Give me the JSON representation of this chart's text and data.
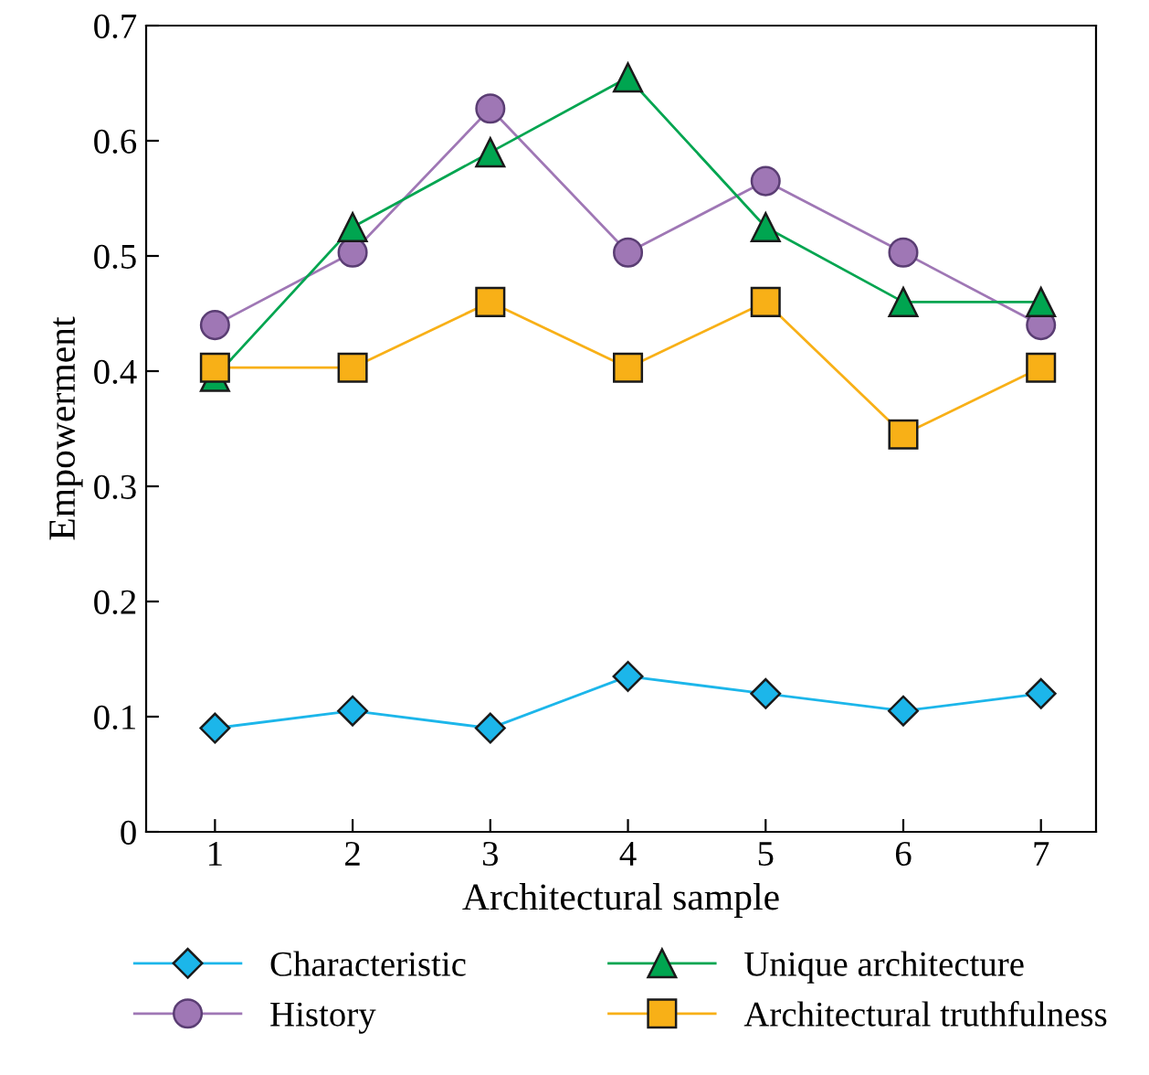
{
  "chart_data": {
    "type": "line",
    "xlabel": "Architectural sample",
    "ylabel": "Empowerment",
    "x": [
      1,
      2,
      3,
      4,
      5,
      6,
      7
    ],
    "xlim": [
      0.5,
      7.4
    ],
    "xticks": [
      1,
      2,
      3,
      4,
      5,
      6,
      7
    ],
    "ylim": [
      0,
      0.7
    ],
    "yticks": [
      0,
      0.1,
      0.2,
      0.3,
      0.4,
      0.5,
      0.6,
      0.7
    ],
    "grid": false,
    "legend": "bottom",
    "series": [
      {
        "name": "Characteristic",
        "color": "#1cb6ea",
        "marker": "diamond",
        "values": [
          0.09,
          0.105,
          0.09,
          0.135,
          0.12,
          0.105,
          0.12
        ]
      },
      {
        "name": "History",
        "color": "#9f77b5",
        "marker": "circle",
        "values": [
          0.44,
          0.503,
          0.628,
          0.503,
          0.565,
          0.503,
          0.44
        ]
      },
      {
        "name": "Unique architecture",
        "color": "#00a550",
        "marker": "triangle",
        "values": [
          0.395,
          0.525,
          0.59,
          0.655,
          0.525,
          0.46,
          0.46
        ]
      },
      {
        "name": "Architectural truthfulness",
        "color": "#f8b017",
        "marker": "square",
        "values": [
          0.403,
          0.403,
          0.46,
          0.403,
          0.46,
          0.345,
          0.403
        ]
      }
    ]
  }
}
